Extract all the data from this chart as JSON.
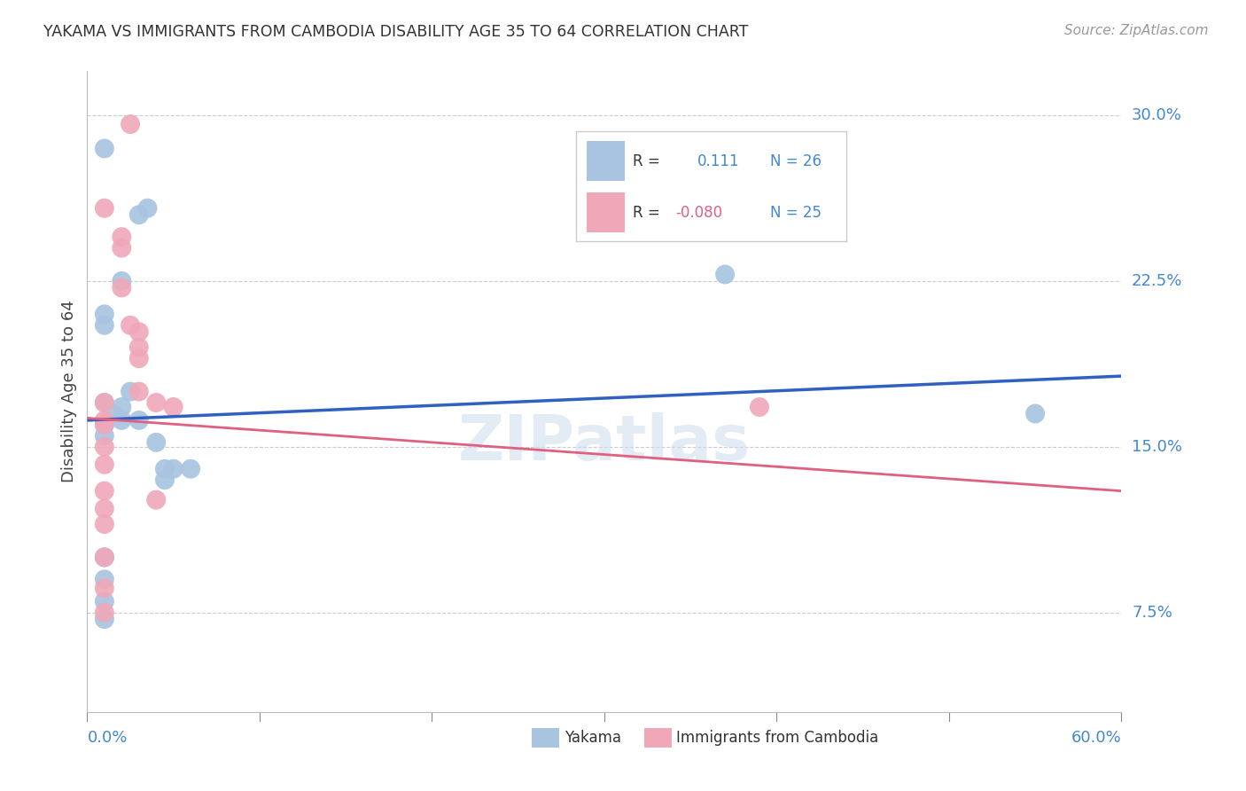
{
  "title": "YAKAMA VS IMMIGRANTS FROM CAMBODIA DISABILITY AGE 35 TO 64 CORRELATION CHART",
  "source": "Source: ZipAtlas.com",
  "ylabel_label": "Disability Age 35 to 64",
  "xlim": [
    0.0,
    0.6
  ],
  "ylim": [
    0.03,
    0.32
  ],
  "blue_color": "#a8c4e0",
  "pink_color": "#f0a8b8",
  "line_blue": "#3060c0",
  "line_pink": "#e06080",
  "yakama_x": [
    0.01,
    0.02,
    0.03,
    0.035,
    0.01,
    0.01,
    0.01,
    0.01,
    0.01,
    0.015,
    0.02,
    0.02,
    0.025,
    0.03,
    0.04,
    0.045,
    0.045,
    0.05,
    0.06,
    0.01,
    0.01,
    0.01,
    0.01,
    0.01,
    0.37,
    0.55
  ],
  "yakama_y": [
    0.285,
    0.225,
    0.255,
    0.258,
    0.21,
    0.205,
    0.17,
    0.16,
    0.155,
    0.165,
    0.162,
    0.168,
    0.175,
    0.162,
    0.152,
    0.14,
    0.135,
    0.14,
    0.14,
    0.1,
    0.1,
    0.09,
    0.08,
    0.072,
    0.228,
    0.165
  ],
  "cambodia_x": [
    0.025,
    0.01,
    0.02,
    0.02,
    0.02,
    0.025,
    0.03,
    0.03,
    0.03,
    0.03,
    0.04,
    0.04,
    0.01,
    0.01,
    0.01,
    0.01,
    0.01,
    0.01,
    0.01,
    0.01,
    0.05,
    0.01,
    0.39,
    0.01,
    0.01
  ],
  "cambodia_y": [
    0.296,
    0.258,
    0.245,
    0.24,
    0.222,
    0.205,
    0.202,
    0.195,
    0.19,
    0.175,
    0.17,
    0.126,
    0.17,
    0.162,
    0.16,
    0.15,
    0.142,
    0.13,
    0.122,
    0.115,
    0.168,
    0.086,
    0.168,
    0.075,
    0.1
  ],
  "blue_trend_x": [
    0.0,
    0.6
  ],
  "blue_trend_y": [
    0.162,
    0.182
  ],
  "pink_trend_x": [
    0.0,
    0.6
  ],
  "pink_trend_y": [
    0.163,
    0.13
  ],
  "watermark": "ZIPatlas",
  "tick_color": "#4488cc",
  "grid_color": "#cccccc",
  "title_color": "#333333",
  "source_color": "#999999",
  "ytick_vals": [
    0.075,
    0.15,
    0.225,
    0.3
  ],
  "ytick_labels": [
    "7.5%",
    "15.0%",
    "22.5%",
    "30.0%"
  ],
  "xtick_positions": [
    0.0,
    0.1,
    0.2,
    0.3,
    0.4,
    0.5,
    0.6
  ],
  "legend_r1_text": "R =    0.111   N = 26",
  "legend_r2_text": "R = -0.080   N = 25"
}
